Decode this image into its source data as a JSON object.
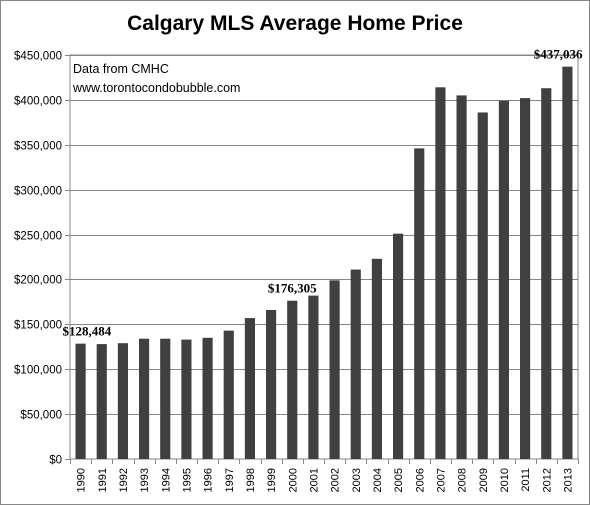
{
  "chart_data": {
    "type": "bar",
    "title": "Calgary MLS Average Home Price",
    "categories": [
      "1990",
      "1991",
      "1992",
      "1993",
      "1994",
      "1995",
      "1996",
      "1997",
      "1998",
      "1999",
      "2000",
      "2001",
      "2002",
      "2003",
      "2004",
      "2005",
      "2006",
      "2007",
      "2008",
      "2009",
      "2010",
      "2011",
      "2012",
      "2013"
    ],
    "values": [
      128484,
      128000,
      129000,
      134000,
      134000,
      133000,
      135000,
      143000,
      157000,
      166000,
      176305,
      182000,
      199000,
      211000,
      223000,
      251000,
      346000,
      414000,
      405000,
      386000,
      399000,
      402000,
      413000,
      437036
    ],
    "ylim": [
      0,
      450000
    ],
    "yticks": [
      "$0",
      "$50,000",
      "$100,000",
      "$150,000",
      "$200,000",
      "$250,000",
      "$300,000",
      "$350,000",
      "$400,000",
      "$450,000"
    ],
    "grid": true,
    "bar_color": "#404040",
    "data_labels": [
      {
        "category": "1990",
        "text": "$128,484"
      },
      {
        "category": "2000",
        "text": "$176,305"
      },
      {
        "category": "2013",
        "text": "$437,036"
      }
    ],
    "annotations": [
      "Data from CMHC",
      "www.torontocondobubble.com"
    ]
  }
}
